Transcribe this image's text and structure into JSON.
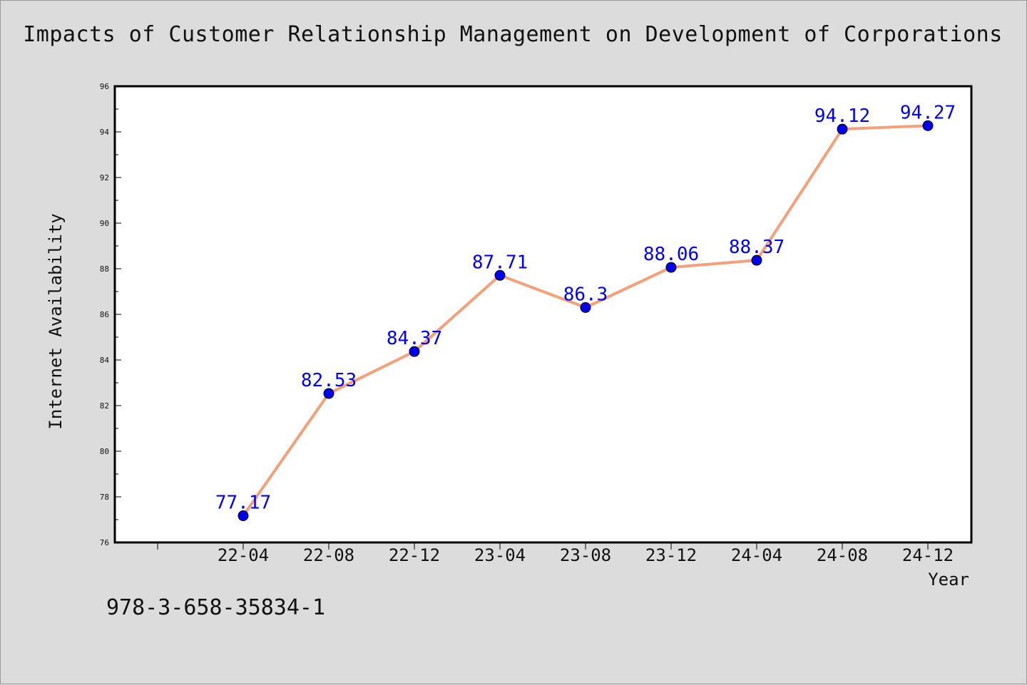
{
  "chart_data": {
    "type": "line",
    "title": "Impacts of Customer Relationship Management on Development of Corporations",
    "xlabel": "Year",
    "ylabel": "Internet Availability",
    "categories": [
      "22-04",
      "22-08",
      "22-12",
      "23-04",
      "23-08",
      "23-12",
      "24-04",
      "24-08",
      "24-12"
    ],
    "series": [
      {
        "values": [
          77.17,
          82.53,
          84.37,
          87.71,
          86.3,
          88.06,
          88.37,
          94.12,
          94.27
        ]
      }
    ],
    "data_labels": [
      "77.17",
      "82.53",
      "84.37",
      "87.71",
      "86.3",
      "88.06",
      "88.37",
      "94.12",
      "94.27"
    ],
    "ylim": [
      76,
      96
    ],
    "yticks": [
      "76",
      "78",
      "80",
      "82",
      "84",
      "86",
      "88",
      "90",
      "92",
      "94",
      "96"
    ],
    "grid": false,
    "colors": {
      "line": "#f4a07a",
      "marker": "#0000ee",
      "label": "#0000ff",
      "background": "#dcdcdc",
      "plot_background": "#ffffff"
    }
  },
  "footer": {
    "code": "978-3-658-35834-1"
  }
}
